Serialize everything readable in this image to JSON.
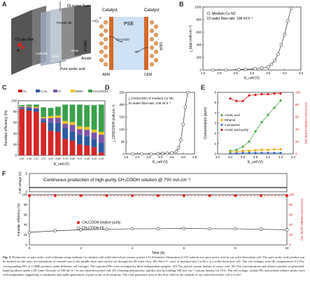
{
  "panels": {
    "A": {
      "letter": "A",
      "labels": {
        "water_flow": "DI water flow",
        "co_gas": "CO gas flow",
        "o2": "O₂",
        "product": "Pure acetic acid",
        "anode": "Anode",
        "cathode": "Cathode",
        "porous_se": "Porous SE",
        "aem": "AEM",
        "cem": "CEM",
        "catalyst_left": "Catalyst",
        "catalyst_right": "Catalyst",
        "pse": "PSE",
        "corr": "CORR",
        "oer": "OER",
        "aem_bottom": "AEM",
        "cem_bottom": "CEM",
        "e": "e⁻",
        "ch3coo": "CH₃COO⁻",
        "hplus": "H⁺"
      }
    },
    "B": {
      "letter": "B",
      "legend1": "Medium Cu NC",
      "legend2": "DI water flow-rate: 108 ml h⁻¹",
      "xlabel": "E_cell (V)",
      "ylabel": "j_total (mA cm⁻²)",
      "xticks": [
        "1.5",
        "2.0",
        "2.5",
        "3.0",
        "3.5",
        "4.0",
        "4.5"
      ],
      "yticks": [
        "0",
        "200",
        "400",
        "600",
        "800",
        "1000"
      ]
    },
    "C": {
      "letter": "C",
      "ylabel": "Faradaic efficiency (%)",
      "xlabel": "E_cell (V)",
      "yticks": [
        "0",
        "20",
        "40",
        "60",
        "80",
        "100"
      ],
      "legend": [
        "H₂",
        "C₂H₄",
        "H⁺",
        "EtOH",
        "CH₃COOH"
      ]
    },
    "D": {
      "letter": "D",
      "legend1": "j_CH3COOH of medium Cu NC",
      "legend2": "DI water flow-rate: 108 ml h⁻¹",
      "xlabel": "E_cell (V)",
      "ylabel": "j_CH3COOH (mA cm⁻²)",
      "xticks": [
        "1.5",
        "2.0",
        "2.5",
        "3.0",
        "3.5",
        "4.0",
        "4.5"
      ],
      "yticks": [
        "0",
        "50",
        "100",
        "150",
        "200",
        "250"
      ]
    },
    "E": {
      "letter": "E",
      "xlabel": "E_cell (V)",
      "ylabel": "Concentration (ppm)",
      "ylabel_right": "CH₃COOH relative purity (%)",
      "xticks": [
        "3.2",
        "3.4",
        "3.6",
        "3.8",
        "4.0",
        "4.2",
        "4.4"
      ],
      "yticks": [
        "0",
        "1",
        "2",
        "3",
        "4",
        "5",
        "6"
      ],
      "yticks_right": [
        "0",
        "20",
        "40",
        "60",
        "80",
        "100"
      ],
      "legend": [
        "Acetic acid",
        "Ethanol",
        "n-propanol",
        "Acetic acid purity"
      ]
    },
    "F": {
      "letter": "F",
      "banner": "Continuous production of high-purity CH₃COOH solution @ 700 mA cm⁻²",
      "ylabel_top": "Cell voltage (V)",
      "ylabel_bottom": "Faradaic efficiency (%)",
      "ylabel_right": "CH₃COOH relative purity (%)",
      "xlabel": "Time (h)",
      "xticks": [
        "0",
        "2",
        "4",
        "6",
        "8",
        "10"
      ],
      "legend1": "CH₃COOH relative purity",
      "legend2": "CH₃COOH FE",
      "yticks_top": [
        "0",
        "5"
      ],
      "yticks_bottom": [
        "0",
        "20",
        "40",
        "60",
        "80",
        "100"
      ]
    }
  },
  "chart_data": [
    {
      "panel": "B",
      "type": "scatter",
      "x": [
        1.8,
        2.2,
        2.6,
        2.8,
        3.1,
        3.3,
        3.5,
        3.6,
        3.7,
        3.8,
        3.9,
        4.0,
        4.1,
        4.2
      ],
      "y": [
        0,
        0,
        5,
        10,
        20,
        30,
        50,
        90,
        150,
        250,
        400,
        560,
        780,
        980
      ],
      "xlim": [
        1.5,
        4.5
      ],
      "ylim": [
        0,
        1000
      ]
    },
    {
      "panel": "C",
      "type": "bar",
      "stacked": true,
      "categories": [
        "2.87",
        "2.98",
        "3.11",
        "3.37",
        "3.57",
        "3.66",
        "3.76",
        "3.86",
        "3.97",
        "4.08",
        "4.16",
        "4.25"
      ],
      "series": [
        {
          "name": "H₂",
          "values": [
            85,
            82,
            80,
            60,
            45,
            43,
            30,
            27,
            20,
            18,
            15,
            5
          ]
        },
        {
          "name": "C₂H₄",
          "values": [
            2,
            4,
            5,
            4,
            15,
            16,
            20,
            17,
            18,
            17,
            15,
            18
          ]
        },
        {
          "name": "H⁺",
          "values": [
            2,
            3,
            2,
            4,
            8,
            10,
            8,
            12,
            10,
            12,
            12,
            15
          ]
        },
        {
          "name": "EtOH",
          "values": [
            1,
            1,
            2,
            2,
            4,
            4,
            5,
            5,
            5,
            5,
            5,
            5
          ]
        },
        {
          "name": "CH₃COOH",
          "values": [
            2,
            3,
            4,
            18,
            15,
            16,
            30,
            32,
            40,
            40,
            45,
            50
          ]
        }
      ],
      "ylim": [
        0,
        100
      ]
    },
    {
      "panel": "D",
      "type": "line",
      "x": [
        1.8,
        2.2,
        2.6,
        2.9,
        3.1,
        3.3,
        3.5,
        3.7,
        3.8,
        3.9,
        4.0,
        4.1,
        4.2
      ],
      "y": [
        0,
        0,
        0,
        1,
        2,
        3,
        4,
        10,
        25,
        55,
        120,
        190,
        250
      ],
      "xlim": [
        1.5,
        4.5
      ],
      "ylim": [
        0,
        250
      ]
    },
    {
      "panel": "E",
      "type": "line",
      "x": [
        3.4,
        3.5,
        3.6,
        3.7,
        3.8,
        3.9,
        4.0,
        4.1,
        4.2
      ],
      "series": [
        {
          "name": "Acetic acid",
          "axis": "left",
          "values": [
            0.3,
            0.4,
            0.7,
            1.2,
            2.2,
            3.1,
            3.8,
            4.5,
            5.2
          ]
        },
        {
          "name": "Ethanol",
          "axis": "left",
          "values": [
            0.2,
            0.2,
            0.3,
            0.3,
            0.35,
            0.4,
            0.4,
            0.45,
            0.45
          ]
        },
        {
          "name": "n-propanol",
          "axis": "left",
          "values": [
            0.05,
            0.05,
            0.1,
            0.1,
            0.1,
            0.1,
            0.1,
            0.1,
            0.1
          ]
        },
        {
          "name": "Acetic acid purity",
          "axis": "right",
          "values": [
            90,
            86,
            86,
            95,
            96,
            97,
            97,
            98,
            98
          ]
        }
      ],
      "xlim": [
        3.2,
        4.4
      ],
      "ylim": [
        0,
        6
      ],
      "ylim_right": [
        0,
        100
      ]
    },
    {
      "panel": "F",
      "type": "line",
      "x": [
        0,
        1,
        2,
        3,
        4,
        5,
        6,
        7,
        8,
        9,
        10
      ],
      "series": [
        {
          "name": "Cell voltage",
          "values": [
            4.3,
            4.3,
            4.3,
            4.3,
            4.3,
            4.3,
            4.3,
            4.3,
            4.3,
            4.3,
            4.3
          ]
        },
        {
          "name": "CH₃COOH relative purity",
          "values": [
            98,
            98,
            98,
            98,
            98,
            98,
            98,
            98,
            98,
            98,
            98
          ]
        },
        {
          "name": "CH₃COOH FE",
          "values": [
            25,
            28,
            30,
            31,
            32,
            32,
            33,
            32,
            32,
            31,
            30
          ]
        }
      ],
      "xlim": [
        0,
        10
      ]
    }
  ],
  "caption": {
    "bold_label": "Fig. 3.",
    "text": "Production of pure acetic acid solutions using medium Cu catalyst with solid electrolyte reactor system. (A) Schematic illustration of CO reduction to pure acetic acid in our solid electrolyte cell. The pure acetic acid product can be formed via the ionic recombination of crossed ions in the middle layer and carried out through the DI water flow. (B) The I-V curve of medium-size Cu NCs in a solid electrolyte cell. The cell voltages were iR compensated. (C) The corresponding FEs of CORR products under different cell voltages. The reported FEs were averaged by three independent samples. (D) The partial current density of acetic acid. (E) The concentrations and relative purities of generated liquid products under a DI water flowrate of 108 mL h⁻¹ in our solid electrolyte cell. (F) Chronopotentiometry stability test by holding 700 mA·cm⁻² current density for 10 h. The cell voltage, acetate FE, and acetate relative purity were well maintained, suggesting a continuous and stable generation of pure acetic acid solutions. The total geometric area of the flow field in the cathode of our solid electrolyte cell is 4 cm²."
  },
  "colors": {
    "h2": "#d62728",
    "c2h4": "#2c5aa0",
    "hplus": "#7d56a8",
    "etoh": "#f0c21b",
    "acetic": "#3aa14a",
    "purity": "#e41a1c",
    "fe": "#444444"
  }
}
